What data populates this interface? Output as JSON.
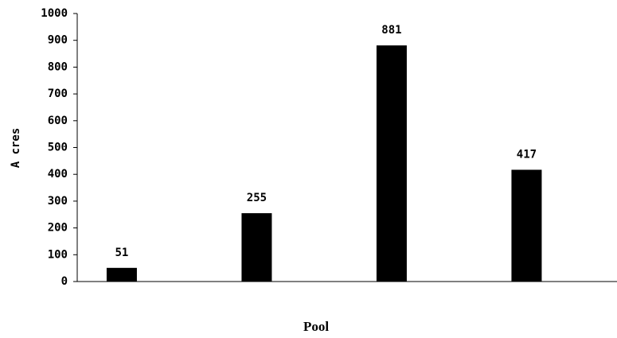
{
  "chart_data": {
    "type": "bar",
    "x_label": "Pool",
    "y_label": "A cres",
    "categories": [
      null,
      null,
      null,
      null
    ],
    "values": [
      51,
      255,
      881,
      417
    ],
    "color": "#000000",
    "ylim": [
      0,
      1000
    ],
    "yticks": [
      0,
      100,
      200,
      300,
      400,
      500,
      600,
      700,
      800,
      900,
      1000
    ],
    "grid": false
  }
}
